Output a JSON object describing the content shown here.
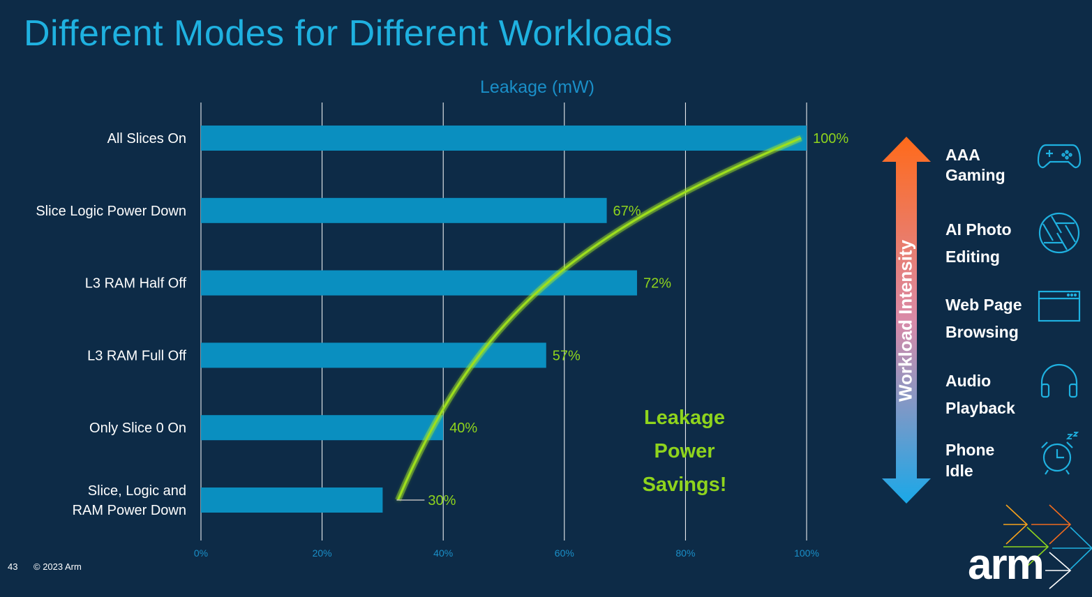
{
  "slide": {
    "title": "Different Modes for Different Workloads",
    "page_number": "43",
    "copyright": "© 2023 Arm",
    "logo_text": "arm"
  },
  "chart_data": {
    "type": "bar",
    "orientation": "horizontal",
    "title": "Leakage (mW)",
    "categories": [
      "All Slices On",
      "Slice Logic Power Down",
      "L3 RAM Half Off",
      "L3 RAM Full Off",
      "Only Slice 0 On",
      "Slice, Logic and RAM Power Down"
    ],
    "category_lines": [
      [
        "All Slices On"
      ],
      [
        "Slice Logic Power Down"
      ],
      [
        "L3 RAM Half Off"
      ],
      [
        "L3 RAM Full Off"
      ],
      [
        "Only Slice 0 On"
      ],
      [
        "Slice, Logic and",
        "RAM Power Down"
      ]
    ],
    "values": [
      100,
      67,
      72,
      57,
      40,
      30
    ],
    "value_labels": [
      "100%",
      "67%",
      "72%",
      "57%",
      "40%",
      "30%"
    ],
    "xlim": [
      0,
      100
    ],
    "xticks": [
      0,
      20,
      40,
      60,
      80,
      100
    ],
    "xtick_labels": [
      "0%",
      "20%",
      "40%",
      "60%",
      "80%",
      "100%"
    ],
    "grid": true,
    "bar_color": "#0a8fc0",
    "label_color": "#8fd41d",
    "trend_curve": true
  },
  "annotation": {
    "lines": [
      "Leakage",
      "Power",
      "Savings!"
    ],
    "color": "#8fd41d"
  },
  "workload_scale": {
    "label": "Workload Intensity",
    "top_color": "#ff6a1a",
    "bottom_color": "#1aa8e8",
    "items": [
      {
        "line1": "AAA",
        "line2": "Gaming",
        "icon": "gamepad-icon"
      },
      {
        "line1": "AI Photo",
        "line2": "Editing",
        "icon": "aperture-icon"
      },
      {
        "line1": "Web Page",
        "line2": "Browsing",
        "icon": "browser-window-icon"
      },
      {
        "line1": "Audio",
        "line2": "Playback",
        "icon": "headphones-icon"
      },
      {
        "line1": "Phone",
        "line2": "Idle",
        "icon": "sleeping-alarm-clock-icon"
      }
    ]
  },
  "colors": {
    "background": "#0d2b47",
    "title": "#1fb1e0",
    "grid": "#ffffff",
    "axis_text": "#1a8fc8"
  }
}
